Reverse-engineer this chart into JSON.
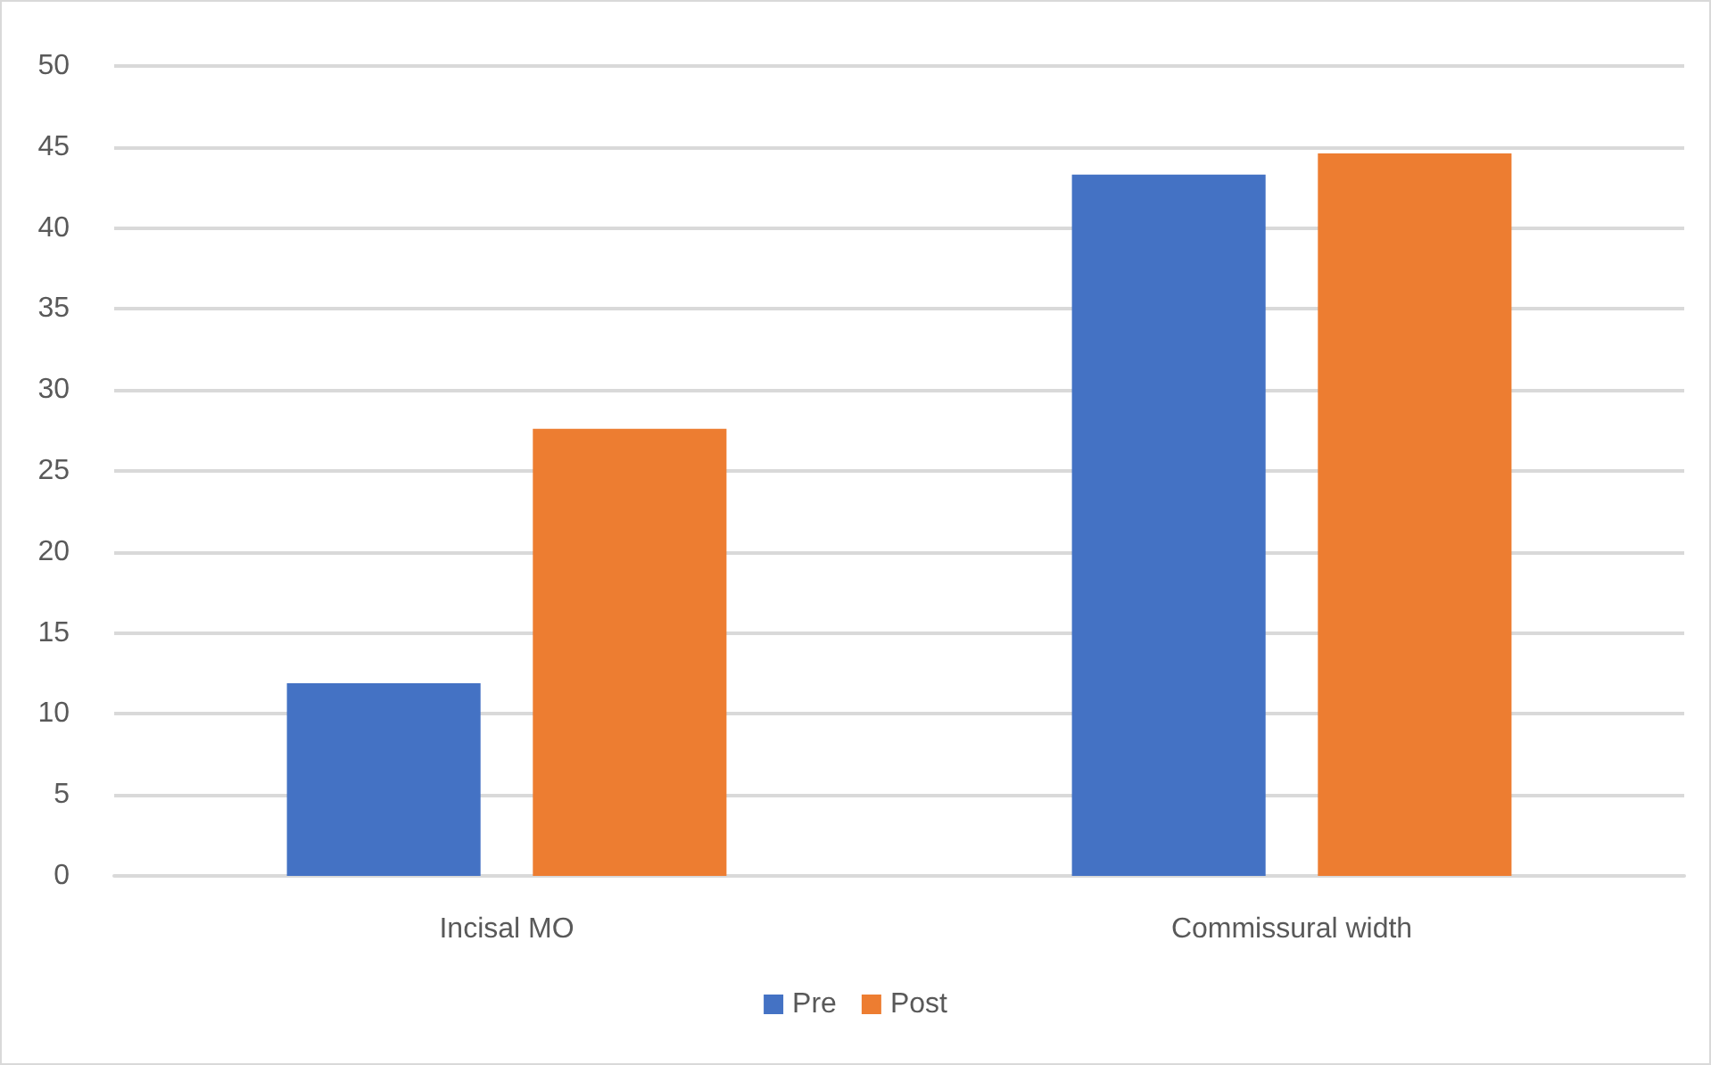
{
  "chart_data": {
    "type": "bar",
    "categories": [
      "Incisal MO",
      "Commissural width"
    ],
    "series": [
      {
        "name": "Pre",
        "color": "#4472c4",
        "values": [
          11.9,
          43.3
        ]
      },
      {
        "name": "Post",
        "color": "#ed7d31",
        "values": [
          27.6,
          44.6
        ]
      }
    ],
    "ylim": [
      0,
      50
    ],
    "yticks": [
      0,
      5,
      10,
      15,
      20,
      25,
      30,
      35,
      40,
      45,
      50
    ],
    "grid": "y",
    "legend": "bottom"
  }
}
